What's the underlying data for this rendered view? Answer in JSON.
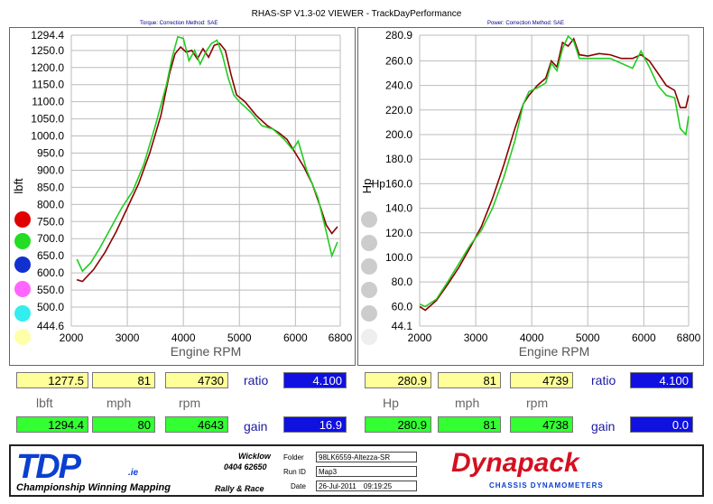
{
  "window_title": "RHAS-SP V1.3-02 VIEWER - TrackDayPerformance",
  "left_subtitle": "Torque:     Correction Method: SAE",
  "right_subtitle": "Power:     Correction Method: SAE",
  "colors": {
    "red": "#8b0000",
    "green": "#22cc22",
    "accent_blue": "#1010e0",
    "highlight_yellow": "#ffff99",
    "row_green": "#33ff33"
  },
  "legend_dots_left": [
    "#e00000",
    "#22dd22",
    "#1030d0",
    "#ff66ff",
    "#33eeee",
    "#ffffaa"
  ],
  "legend_dots_right": [
    "#cccccc",
    "#cccccc",
    "#cccccc",
    "#cccccc",
    "#cccccc",
    "#eeeeee"
  ],
  "chart_data": [
    {
      "type": "line",
      "ylabel": "lbft",
      "xlabel": "Engine RPM",
      "xlim": [
        2000,
        6800
      ],
      "ylim": [
        444.6,
        1294.4
      ],
      "xticks": [
        "2000",
        "3000",
        "4000",
        "5000",
        "6000",
        "6800"
      ],
      "yticks": [
        "1294.4",
        "1250.0",
        "1200.0",
        "1150.0",
        "1100.0",
        "1050.0",
        "1000.0",
        "950.0",
        "900.0",
        "850.0",
        "800.0",
        "750.0",
        "700.0",
        "650.0",
        "600.0",
        "550.0",
        "500.0",
        "444.6"
      ],
      "series": [
        {
          "color": "#8b0000",
          "x": [
            2100,
            2200,
            2400,
            2600,
            2800,
            3000,
            3200,
            3400,
            3600,
            3750,
            3850,
            3950,
            4050,
            4150,
            4250,
            4350,
            4450,
            4550,
            4650,
            4750,
            4850,
            4950,
            5100,
            5300,
            5500,
            5700,
            5850,
            6000,
            6150,
            6300,
            6450,
            6550,
            6650,
            6750
          ],
          "y": [
            580,
            575,
            610,
            660,
            720,
            790,
            860,
            950,
            1060,
            1180,
            1240,
            1260,
            1245,
            1250,
            1225,
            1255,
            1230,
            1265,
            1270,
            1250,
            1180,
            1120,
            1100,
            1060,
            1030,
            1010,
            990,
            950,
            910,
            860,
            790,
            740,
            715,
            735
          ]
        },
        {
          "color": "#22cc22",
          "x": [
            2100,
            2200,
            2350,
            2500,
            2700,
            2900,
            3100,
            3300,
            3500,
            3700,
            3800,
            3900,
            4000,
            4100,
            4200,
            4300,
            4400,
            4500,
            4600,
            4700,
            4800,
            4900,
            5000,
            5200,
            5400,
            5600,
            5800,
            5950,
            6050,
            6200,
            6400,
            6550,
            6650,
            6750
          ],
          "y": [
            640,
            605,
            630,
            670,
            730,
            790,
            840,
            920,
            1030,
            1150,
            1230,
            1290,
            1285,
            1220,
            1250,
            1210,
            1245,
            1270,
            1280,
            1235,
            1170,
            1120,
            1100,
            1070,
            1030,
            1020,
            990,
            960,
            985,
            900,
            820,
            720,
            650,
            690
          ]
        }
      ]
    },
    {
      "type": "line",
      "ylabel": "Hp",
      "xlabel": "Engine RPM",
      "xlim": [
        2000,
        6800
      ],
      "ylim": [
        44.1,
        280.9
      ],
      "xticks": [
        "2000",
        "3000",
        "4000",
        "5000",
        "6000",
        "6800"
      ],
      "yticks": [
        "280.9",
        "260.0",
        "240.0",
        "220.0",
        "200.0",
        "180.0",
        "Hp160.0",
        "140.0",
        "120.0",
        "100.0",
        "80.0",
        "60.0",
        "44.1"
      ],
      "series": [
        {
          "color": "#8b0000",
          "x": [
            2000,
            2100,
            2300,
            2500,
            2700,
            2900,
            3100,
            3300,
            3500,
            3700,
            3850,
            3950,
            4100,
            4250,
            4350,
            4450,
            4550,
            4650,
            4750,
            4850,
            5000,
            5200,
            5400,
            5600,
            5800,
            5950,
            6100,
            6250,
            6400,
            6550,
            6650,
            6750,
            6800
          ],
          "y": [
            60,
            57,
            65,
            78,
            92,
            108,
            125,
            148,
            175,
            205,
            225,
            232,
            240,
            246,
            260,
            255,
            275,
            272,
            278,
            265,
            264,
            266,
            265,
            262,
            262,
            265,
            260,
            250,
            240,
            236,
            222,
            222,
            232
          ]
        },
        {
          "color": "#22cc22",
          "x": [
            2000,
            2100,
            2300,
            2500,
            2700,
            2900,
            3100,
            3300,
            3500,
            3700,
            3850,
            3950,
            4100,
            4250,
            4350,
            4450,
            4550,
            4650,
            4750,
            4850,
            5000,
            5200,
            5400,
            5600,
            5800,
            5950,
            6100,
            6250,
            6400,
            6550,
            6650,
            6750,
            6800
          ],
          "y": [
            62,
            60,
            66,
            80,
            95,
            110,
            122,
            140,
            165,
            195,
            225,
            235,
            238,
            242,
            258,
            252,
            270,
            280,
            276,
            262,
            262,
            262,
            262,
            258,
            254,
            268,
            255,
            240,
            232,
            230,
            205,
            200,
            215
          ]
        }
      ]
    }
  ],
  "left_labels": {
    "t1": "lbft",
    "t2": "mph",
    "t3": "rpm",
    "ratio": "ratio",
    "gain": "gain"
  },
  "right_labels": {
    "t1": "Hp",
    "t2": "mph",
    "t3": "rpm",
    "ratio": "ratio",
    "gain": "gain"
  },
  "left_row1": {
    "a": "1277.5",
    "b": "81",
    "c": "4730",
    "d": "4.100"
  },
  "left_row2": {
    "a": "1294.4",
    "b": "80",
    "c": "4643",
    "d": "16.9"
  },
  "right_row1": {
    "a": "280.9",
    "b": "81",
    "c": "4739",
    "d": "4.100"
  },
  "right_row2": {
    "a": "280.9",
    "b": "81",
    "c": "4738",
    "d": "0.0"
  },
  "banner": {
    "logo": "TDP",
    "logo_suffix": ".ie",
    "tagline": "Championship Winning Mapping",
    "location": "Wicklow",
    "phone": "0404 62650",
    "rally": "Rally & Race",
    "folder_label": "Folder",
    "folder_value": "98LK6559-Altezza-SR",
    "runid_label": "Run ID",
    "runid_value": "Map3",
    "date_label": "Date",
    "date_value": "26-Jul-2011",
    "time_value": "09:19:25",
    "brand": "Dynapack",
    "brand_sub": "CHASSIS DYNAMOMETERS"
  }
}
